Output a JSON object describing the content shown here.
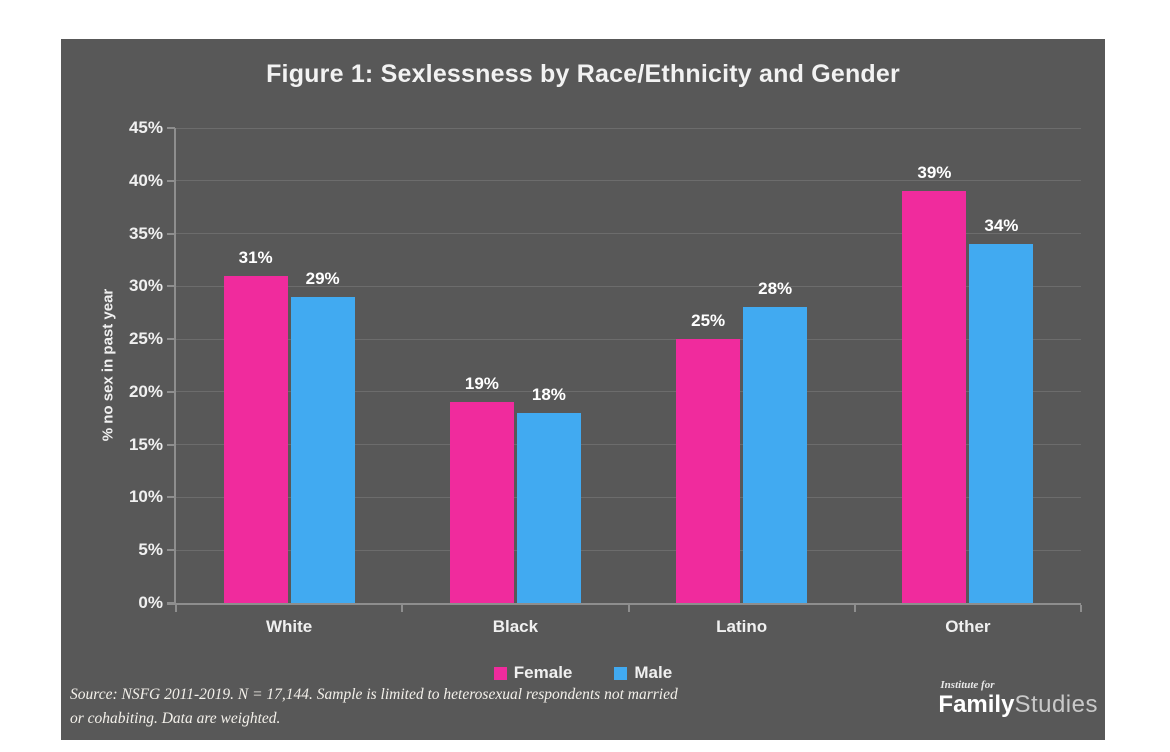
{
  "page": {
    "background": "#ffffff"
  },
  "canvas": {
    "background": "#585858"
  },
  "chart_data": {
    "type": "bar",
    "title": "Figure 1: Sexlessness by Race/Ethnicity and Gender",
    "categories": [
      "White",
      "Black",
      "Latino",
      "Other"
    ],
    "series": [
      {
        "name": "Female",
        "color": "#F02B9D",
        "values": [
          31,
          19,
          25,
          39
        ]
      },
      {
        "name": "Male",
        "color": "#41AAF1",
        "values": [
          29,
          18,
          28,
          34
        ]
      }
    ],
    "xlabel": "",
    "ylabel": "% no sex in past year",
    "ylim": [
      0,
      45
    ],
    "ytick_step": 5,
    "ytick_labels": [
      "0%",
      "5%",
      "10%",
      "15%",
      "20%",
      "25%",
      "30%",
      "35%",
      "40%",
      "45%"
    ],
    "value_labels": [
      [
        "31%",
        "19%",
        "25%",
        "39%"
      ],
      [
        "29%",
        "18%",
        "28%",
        "34%"
      ]
    ],
    "grid": true,
    "legend_position": "bottom",
    "gridline_color": "#6c6c6c",
    "axis_color": "#8e8e8e",
    "text_color": "#f0f0f0"
  },
  "footer": {
    "source_line1": "Source: NSFG 2011-2019. N = 17,144. Sample is limited to heterosexual respondents not married",
    "source_line2": "or cohabiting. Data are weighted.",
    "logo": {
      "top": "Institute for",
      "bold": "Family",
      "regular": "Studies"
    }
  }
}
